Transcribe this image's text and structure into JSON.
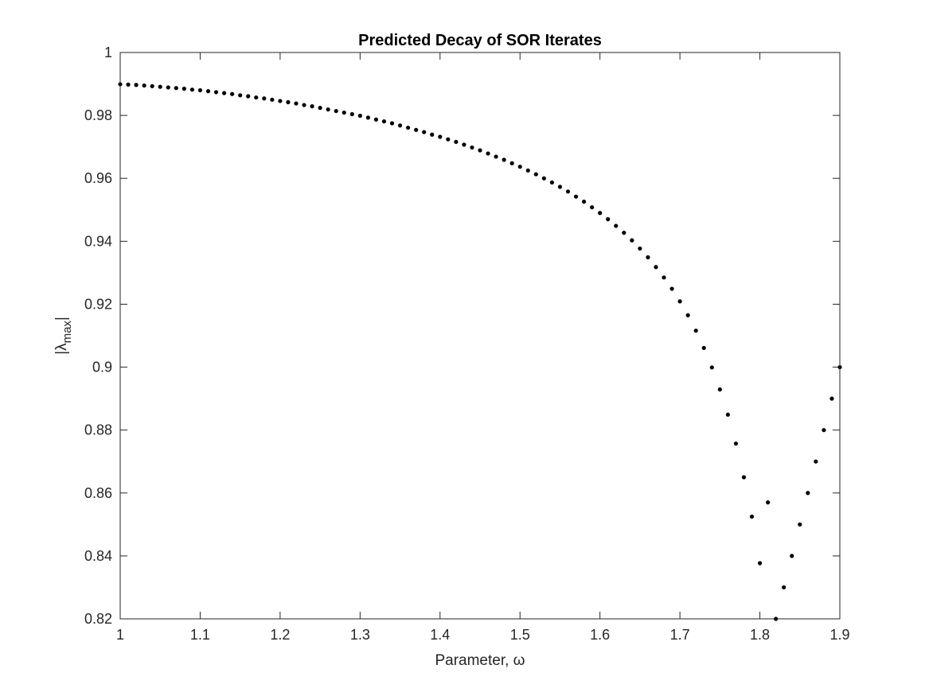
{
  "chart_data": {
    "type": "scatter",
    "title": "Predicted Decay of SOR Iterates",
    "xlabel": "Parameter, ω",
    "ylabel": {
      "base": "|λ",
      "subscript": "max",
      "close": "|"
    },
    "xlim": [
      1,
      1.9
    ],
    "ylim": [
      0.82,
      1
    ],
    "xticks": [
      "1",
      "1.1",
      "1.2",
      "1.3",
      "1.4",
      "1.5",
      "1.6",
      "1.7",
      "1.8",
      "1.9"
    ],
    "yticks": [
      "0.82",
      "0.84",
      "0.86",
      "0.88",
      "0.9",
      "0.92",
      "0.94",
      "0.96",
      "0.98",
      "1"
    ],
    "grid": false,
    "marker_color": "#000000",
    "x": [
      1.0,
      1.01,
      1.02,
      1.03,
      1.04,
      1.05,
      1.06,
      1.07,
      1.08,
      1.09,
      1.1,
      1.11,
      1.12,
      1.13,
      1.14,
      1.15,
      1.16,
      1.17,
      1.18,
      1.19,
      1.2,
      1.21,
      1.22,
      1.23,
      1.24,
      1.25,
      1.26,
      1.27,
      1.28,
      1.29,
      1.3,
      1.31,
      1.32,
      1.33,
      1.34,
      1.35,
      1.36,
      1.37,
      1.38,
      1.39,
      1.4,
      1.41,
      1.42,
      1.43,
      1.44,
      1.45,
      1.46,
      1.47,
      1.48,
      1.49,
      1.5,
      1.51,
      1.52,
      1.53,
      1.54,
      1.55,
      1.56,
      1.57,
      1.58,
      1.59,
      1.6,
      1.61,
      1.62,
      1.63,
      1.64,
      1.65,
      1.66,
      1.67,
      1.68,
      1.69,
      1.7,
      1.71,
      1.72,
      1.73,
      1.74,
      1.75,
      1.76,
      1.77,
      1.78,
      1.79,
      1.8,
      1.81,
      1.82,
      1.83,
      1.84,
      1.85,
      1.86,
      1.87,
      1.88,
      1.89,
      1.9
    ],
    "y": [
      0.9899,
      0.9898,
      0.9897,
      0.9895,
      0.9893,
      0.9891,
      0.9889,
      0.9887,
      0.9885,
      0.9882,
      0.988,
      0.9877,
      0.9874,
      0.9871,
      0.9868,
      0.9864,
      0.9861,
      0.9857,
      0.9854,
      0.985,
      0.9846,
      0.9842,
      0.9838,
      0.9833,
      0.9829,
      0.9824,
      0.9819,
      0.9814,
      0.9809,
      0.9804,
      0.9799,
      0.9793,
      0.9787,
      0.9781,
      0.9775,
      0.9768,
      0.9761,
      0.9754,
      0.9747,
      0.9739,
      0.9732,
      0.9724,
      0.9716,
      0.9707,
      0.9698,
      0.9689,
      0.9679,
      0.9669,
      0.9659,
      0.9648,
      0.9637,
      0.9625,
      0.9613,
      0.96,
      0.9587,
      0.9573,
      0.9558,
      0.9542,
      0.9526,
      0.9508,
      0.949,
      0.947,
      0.9449,
      0.9427,
      0.9403,
      0.9377,
      0.9349,
      0.9318,
      0.9285,
      0.9249,
      0.9209,
      0.9165,
      0.9116,
      0.9061,
      0.8999,
      0.8929,
      0.8849,
      0.8757,
      0.865,
      0.8525,
      0.8377,
      0.857,
      0.82,
      0.83,
      0.84,
      0.85,
      0.86,
      0.87,
      0.88,
      0.89,
      0.9
    ]
  }
}
